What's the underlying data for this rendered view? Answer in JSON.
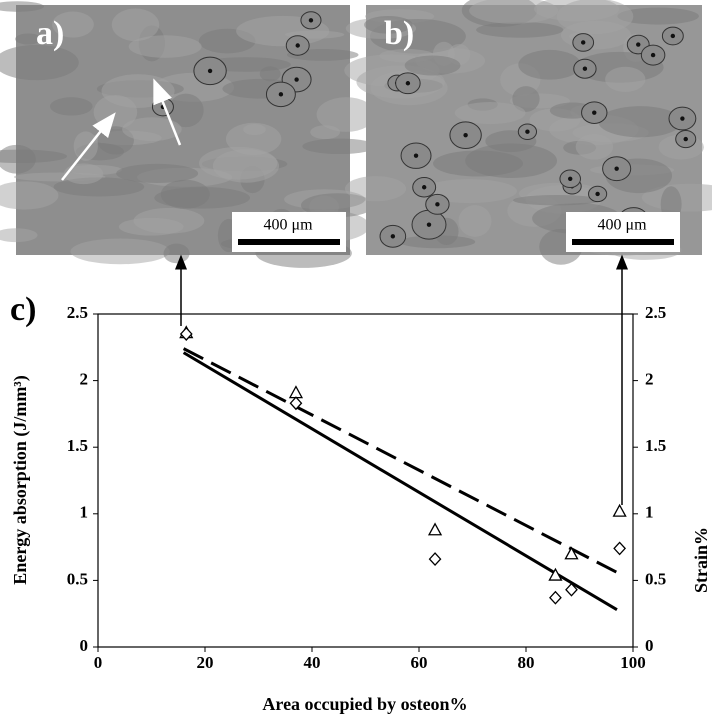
{
  "panels": [
    {
      "label": "a)",
      "scale": "400 μm"
    },
    {
      "label": "b)",
      "scale": "400 μm"
    }
  ],
  "chart_data": {
    "type": "scatter",
    "panel_label": "c)",
    "xlabel": "Area occupied by osteon%",
    "ylabel": "Energy absorption (J/mm³)",
    "y2label": "Strain%",
    "xlim": [
      0,
      100
    ],
    "xticks": [
      0,
      20,
      40,
      60,
      80,
      100
    ],
    "ylim": [
      0,
      2.5
    ],
    "yticks": [
      0,
      0.5,
      1,
      1.5,
      2,
      2.5
    ],
    "y2lim": [
      0,
      2.5
    ],
    "y2ticks": [
      0,
      0.5,
      1,
      1.5,
      2,
      2.5
    ],
    "grid": false,
    "series": [
      {
        "marker": "triangle",
        "color": "#000000",
        "x": [
          16.5,
          37,
          63,
          85.5,
          88.5,
          97.5
        ],
        "values": [
          2.36,
          1.91,
          0.88,
          0.54,
          0.7,
          1.02
        ]
      },
      {
        "marker": "diamond",
        "color": "#000000",
        "x": [
          16.5,
          37,
          63,
          85.5,
          88.5,
          97.5
        ],
        "values": [
          2.35,
          1.83,
          0.66,
          0.37,
          0.43,
          0.74
        ]
      }
    ],
    "lines": [
      {
        "style": "solid",
        "color": "#000000",
        "x": [
          16,
          97
        ],
        "values": [
          2.21,
          0.28
        ]
      },
      {
        "style": "dashed",
        "color": "#000000",
        "x": [
          16,
          97
        ],
        "values": [
          2.24,
          0.56
        ]
      }
    ]
  }
}
